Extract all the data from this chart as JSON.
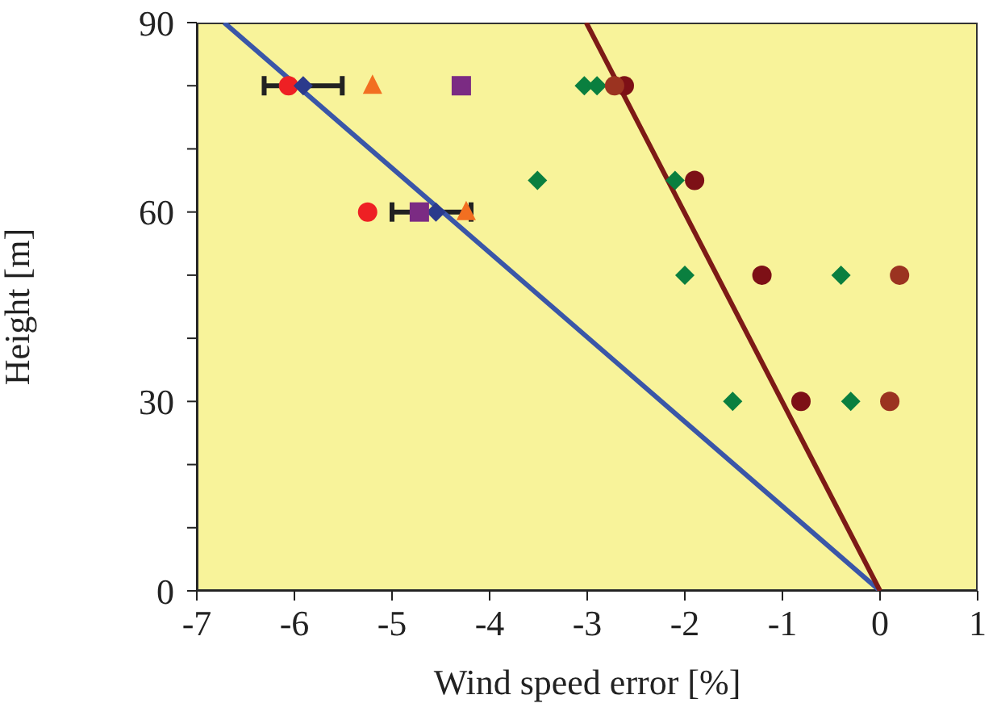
{
  "chart_data": {
    "type": "scatter",
    "xlabel": "Wind speed error [%]",
    "ylabel": "Height [m]",
    "xlim": [
      -7,
      1
    ],
    "xticks": [
      -7,
      -6,
      -5,
      -4,
      -3,
      -2,
      -1,
      0,
      1
    ],
    "ylim": [
      0,
      90
    ],
    "yticks": [
      0,
      {
        "value": 10,
        "label": null
      },
      {
        "value": 20,
        "label": null
      },
      30,
      {
        "value": 40,
        "label": null
      },
      {
        "value": 50,
        "label": null
      },
      60,
      {
        "value": 70,
        "label": null
      },
      {
        "value": 80,
        "label": null
      },
      90
    ],
    "grid": false,
    "legend": false,
    "series": [
      {
        "type": "line",
        "color": "#3a56a8",
        "marker": "none",
        "x": [
          0,
          -6.72
        ],
        "values": [
          0,
          90
        ]
      },
      {
        "type": "line",
        "color": "#7d1a16",
        "marker": "none",
        "x": [
          0,
          -3.01
        ],
        "values": [
          0,
          90
        ]
      },
      {
        "color": "#ee2024",
        "marker": "circle",
        "x": [
          -6.06,
          -5.25
        ],
        "values": [
          80,
          60
        ]
      },
      {
        "color": "#2b3a8c",
        "marker": "diamond",
        "x": [
          -5.91,
          -4.55
        ],
        "values": [
          80,
          60
        ],
        "xerrors": [
          [
            -6.31,
            -5.51
          ],
          [
            -5.0,
            -4.19
          ]
        ]
      },
      {
        "color": "#f26f21",
        "marker": "triangle",
        "x": [
          -5.2,
          -4.24
        ],
        "values": [
          80,
          60
        ]
      },
      {
        "color": "#7b2b83",
        "marker": "square",
        "x": [
          -4.29,
          -4.72
        ],
        "values": [
          80,
          60
        ]
      },
      {
        "color": "#0a7f3f",
        "marker": "diamond",
        "x": [
          -3.03,
          -2.9,
          -3.51,
          -2.1,
          -2.0,
          -0.4,
          -1.51,
          -0.3
        ],
        "values": [
          80,
          80,
          65,
          65,
          50,
          50,
          30,
          30
        ]
      },
      {
        "color": "#7d1016",
        "marker": "circle",
        "x": [
          -2.62,
          -1.9,
          -1.21,
          -0.81
        ],
        "values": [
          80,
          65,
          50,
          30
        ]
      },
      {
        "color": "#9b3320",
        "marker": "circle",
        "x": [
          -2.72,
          0.2,
          0.1
        ],
        "values": [
          80,
          50,
          30
        ]
      }
    ]
  }
}
